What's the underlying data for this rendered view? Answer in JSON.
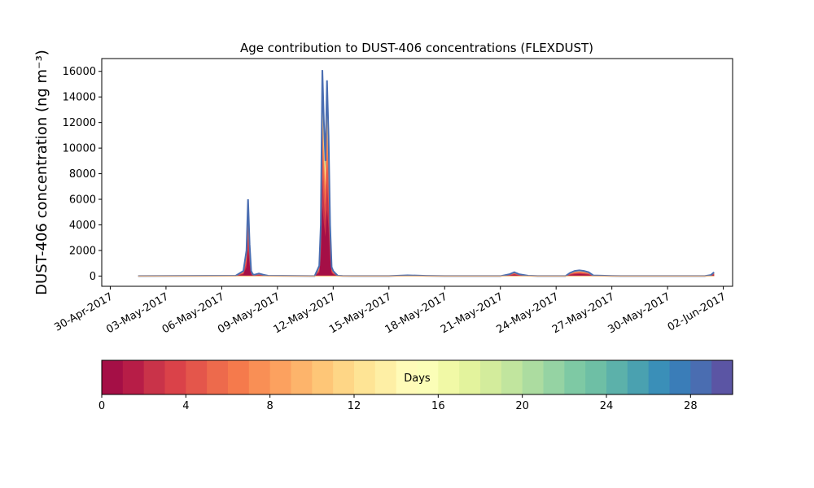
{
  "chart_data": {
    "type": "area",
    "title": "Age contribution to DUST-406 concentrations (FLEXDUST)",
    "ylabel": "DUST-406 concentration (ng m⁻³)",
    "xlabel": "",
    "x_start": "2017-04-30",
    "x_end": "2017-06-02",
    "xlim": [
      "2017-04-29T13:00",
      "2017-06-02T12:00"
    ],
    "ylim": [
      -800,
      17000
    ],
    "yticks": [
      0,
      2000,
      4000,
      6000,
      8000,
      10000,
      12000,
      14000,
      16000
    ],
    "xtick_labels": [
      "30-Apr-2017",
      "03-May-2017",
      "06-May-2017",
      "09-May-2017",
      "12-May-2017",
      "15-May-2017",
      "18-May-2017",
      "21-May-2017",
      "24-May-2017",
      "27-May-2017",
      "30-May-2017",
      "02-Jun-2017"
    ],
    "xticks": [
      "2017-04-30",
      "2017-05-03",
      "2017-05-06",
      "2017-05-09",
      "2017-05-12",
      "2017-05-15",
      "2017-05-18",
      "2017-05-21",
      "2017-05-24",
      "2017-05-27",
      "2017-05-30",
      "2017-06-02"
    ],
    "grid": false,
    "total": {
      "x": [
        "2017-05-01T12:00",
        "2017-05-06T18:00",
        "2017-05-07T04:00",
        "2017-05-07T08:00",
        "2017-05-07T10:00",
        "2017-05-07T12:00",
        "2017-05-07T14:00",
        "2017-05-07T16:00",
        "2017-05-07T18:00",
        "2017-05-08T00:00",
        "2017-05-08T06:00",
        "2017-05-08T12:00",
        "2017-05-09T06:00",
        "2017-05-11T00:00",
        "2017-05-11T06:00",
        "2017-05-11T08:00",
        "2017-05-11T10:00",
        "2017-05-11T12:00",
        "2017-05-11T14:00",
        "2017-05-11T16:00",
        "2017-05-11T18:00",
        "2017-05-11T20:00",
        "2017-05-11T22:00",
        "2017-05-12T00:00",
        "2017-05-12T03:00",
        "2017-05-12T06:00",
        "2017-05-12T12:00",
        "2017-05-13T00:00",
        "2017-05-14T00:00",
        "2017-05-15T00:00",
        "2017-05-16T00:00",
        "2017-05-17T00:00",
        "2017-05-18T00:00",
        "2017-05-19T00:00",
        "2017-05-20T00:00",
        "2017-05-21T00:00",
        "2017-05-21T12:00",
        "2017-05-21T18:00",
        "2017-05-22T00:00",
        "2017-05-22T12:00",
        "2017-05-23T00:00",
        "2017-05-24T12:00",
        "2017-05-24T18:00",
        "2017-05-25T00:00",
        "2017-05-25T06:00",
        "2017-05-25T12:00",
        "2017-05-25T18:00",
        "2017-05-26T00:00",
        "2017-05-27T00:00",
        "2017-05-28T00:00",
        "2017-05-29T00:00",
        "2017-05-30T00:00",
        "2017-05-31T00:00",
        "2017-06-01T00:00",
        "2017-06-01T08:00",
        "2017-06-01T12:00"
      ],
      "y": [
        0,
        30,
        400,
        2000,
        6000,
        2500,
        400,
        150,
        100,
        200,
        100,
        30,
        20,
        0,
        800,
        4000,
        16100,
        12000,
        9000,
        15300,
        11000,
        4000,
        700,
        400,
        200,
        30,
        10,
        0,
        0,
        0,
        60,
        20,
        0,
        0,
        0,
        0,
        150,
        300,
        150,
        30,
        0,
        0,
        250,
        400,
        450,
        400,
        300,
        50,
        10,
        0,
        0,
        0,
        0,
        0,
        80,
        300
      ]
    },
    "age_bins": {
      "label": "Days",
      "range": [
        0,
        30
      ],
      "ticks": [
        0,
        4,
        8,
        12,
        16,
        20,
        24,
        28
      ],
      "count": 30,
      "colormap": [
        "#a50f46",
        "#b71d47",
        "#c93349",
        "#da4249",
        "#e4564b",
        "#ed6a4c",
        "#f57a4c",
        "#f98f55",
        "#fca15f",
        "#fdb46b",
        "#fec677",
        "#fed686",
        "#fee495",
        "#feefa5",
        "#fffbb8",
        "#fbfeb7",
        "#f1f9a6",
        "#e3f39d",
        "#d3ec9c",
        "#c1e59e",
        "#acdca0",
        "#95d3a3",
        "#7ec9a4",
        "#6ebfa5",
        "#5cb1aa",
        "#4aa1b0",
        "#3a8fb8",
        "#3a7db8",
        "#4a6db1",
        "#5b55a4"
      ]
    }
  }
}
